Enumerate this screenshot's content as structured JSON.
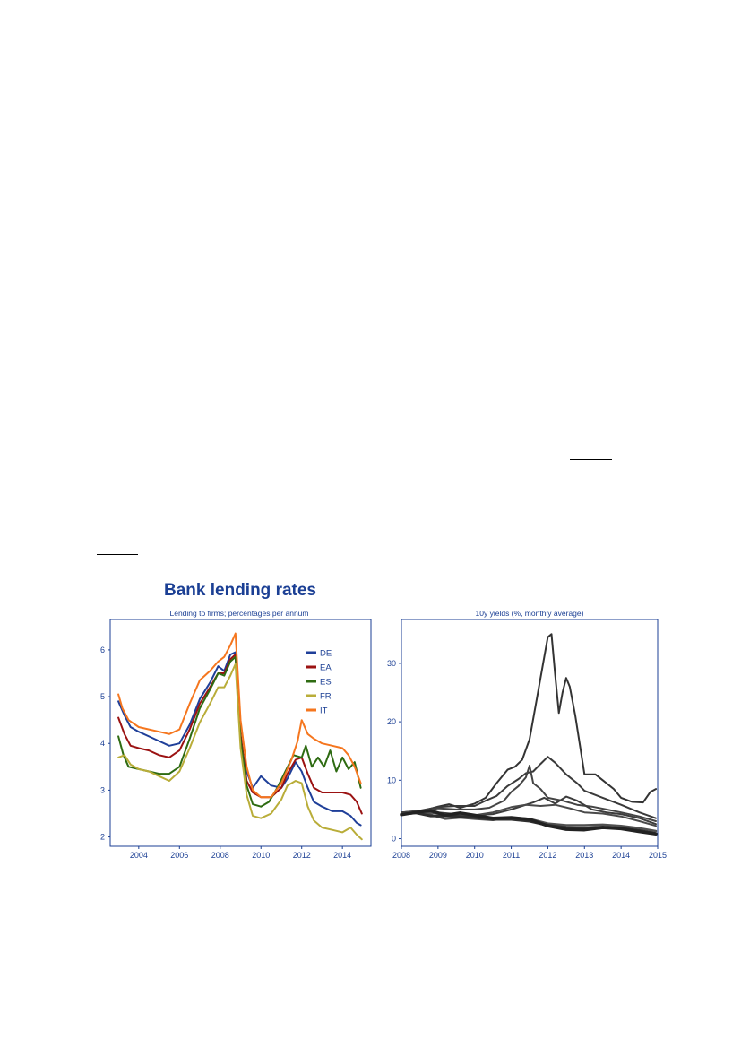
{
  "main_title": "Bank lending rates",
  "chart_data": [
    {
      "type": "line",
      "title": "Lending to firms; percentages per annum",
      "xlabel": "",
      "ylabel": "",
      "xlim": [
        2002.6,
        2015.4
      ],
      "ylim": [
        1.8,
        6.65
      ],
      "xticks": [
        2004,
        2006,
        2008,
        2010,
        2012,
        2014
      ],
      "yticks": [
        2,
        3,
        4,
        5,
        6
      ],
      "grid": false,
      "legend_position": "top-right",
      "series": [
        {
          "name": "DE",
          "color": "#1f3f99",
          "x": [
            2003.0,
            2003.3,
            2003.6,
            2004.0,
            2004.5,
            2005.0,
            2005.5,
            2006.0,
            2006.5,
            2007.0,
            2007.5,
            2007.9,
            2008.2,
            2008.5,
            2008.75,
            2009.0,
            2009.3,
            2009.6,
            2010.0,
            2010.5,
            2011.0,
            2011.3,
            2011.7,
            2012.0,
            2012.3,
            2012.6,
            2013.0,
            2013.5,
            2014.0,
            2014.4,
            2014.7,
            2014.9
          ],
          "y": [
            4.9,
            4.6,
            4.35,
            4.25,
            4.15,
            4.05,
            3.95,
            4.0,
            4.4,
            4.95,
            5.3,
            5.65,
            5.55,
            5.9,
            5.95,
            4.0,
            3.4,
            3.05,
            3.3,
            3.1,
            3.05,
            3.25,
            3.6,
            3.4,
            3.05,
            2.75,
            2.65,
            2.55,
            2.55,
            2.45,
            2.3,
            2.25
          ]
        },
        {
          "name": "EA",
          "color": "#9b1212",
          "x": [
            2003.0,
            2003.3,
            2003.6,
            2004.0,
            2004.5,
            2005.0,
            2005.5,
            2006.0,
            2006.5,
            2007.0,
            2007.5,
            2007.9,
            2008.2,
            2008.5,
            2008.75,
            2009.0,
            2009.3,
            2009.6,
            2010.0,
            2010.5,
            2011.0,
            2011.3,
            2011.7,
            2012.0,
            2012.3,
            2012.6,
            2013.0,
            2013.5,
            2014.0,
            2014.4,
            2014.7,
            2014.95
          ],
          "y": [
            4.55,
            4.2,
            3.95,
            3.9,
            3.85,
            3.75,
            3.7,
            3.85,
            4.3,
            4.85,
            5.2,
            5.5,
            5.5,
            5.8,
            5.9,
            4.2,
            3.2,
            2.95,
            2.85,
            2.85,
            3.05,
            3.35,
            3.65,
            3.7,
            3.35,
            3.05,
            2.95,
            2.95,
            2.95,
            2.9,
            2.75,
            2.5
          ]
        },
        {
          "name": "ES",
          "color": "#2e6b12",
          "x": [
            2003.0,
            2003.25,
            2003.5,
            2004.0,
            2004.5,
            2005.0,
            2005.5,
            2006.0,
            2006.5,
            2007.0,
            2007.5,
            2007.9,
            2008.2,
            2008.5,
            2008.75,
            2009.0,
            2009.3,
            2009.6,
            2010.0,
            2010.4,
            2010.8,
            2011.2,
            2011.6,
            2012.0,
            2012.2,
            2012.5,
            2012.8,
            2013.1,
            2013.4,
            2013.7,
            2014.0,
            2014.3,
            2014.6,
            2014.9
          ],
          "y": [
            4.15,
            3.75,
            3.5,
            3.45,
            3.4,
            3.35,
            3.35,
            3.5,
            4.1,
            4.75,
            5.15,
            5.5,
            5.45,
            5.75,
            5.85,
            4.1,
            3.1,
            2.7,
            2.65,
            2.75,
            3.05,
            3.4,
            3.75,
            3.7,
            3.95,
            3.5,
            3.7,
            3.5,
            3.85,
            3.4,
            3.7,
            3.45,
            3.6,
            3.05
          ]
        },
        {
          "name": "FR",
          "color": "#b9ad39",
          "x": [
            2003.0,
            2003.3,
            2003.6,
            2004.0,
            2004.5,
            2005.0,
            2005.5,
            2006.0,
            2006.5,
            2007.0,
            2007.5,
            2007.9,
            2008.2,
            2008.5,
            2008.75,
            2009.0,
            2009.3,
            2009.6,
            2010.0,
            2010.5,
            2011.0,
            2011.3,
            2011.7,
            2012.0,
            2012.3,
            2012.6,
            2013.0,
            2013.5,
            2014.0,
            2014.4,
            2014.7,
            2014.95
          ],
          "y": [
            3.7,
            3.75,
            3.55,
            3.45,
            3.4,
            3.3,
            3.2,
            3.4,
            3.9,
            4.45,
            4.85,
            5.2,
            5.2,
            5.45,
            5.7,
            3.9,
            2.9,
            2.45,
            2.4,
            2.5,
            2.8,
            3.1,
            3.2,
            3.15,
            2.65,
            2.35,
            2.2,
            2.15,
            2.1,
            2.2,
            2.05,
            1.95
          ]
        },
        {
          "name": "IT",
          "color": "#f5761e",
          "x": [
            2003.0,
            2003.2,
            2003.5,
            2004.0,
            2004.5,
            2005.0,
            2005.5,
            2006.0,
            2006.5,
            2007.0,
            2007.5,
            2007.9,
            2008.2,
            2008.5,
            2008.75,
            2009.0,
            2009.3,
            2009.6,
            2010.0,
            2010.5,
            2011.0,
            2011.5,
            2011.8,
            2012.0,
            2012.3,
            2012.6,
            2013.0,
            2013.5,
            2014.0,
            2014.3,
            2014.6,
            2014.9
          ],
          "y": [
            5.05,
            4.75,
            4.5,
            4.35,
            4.3,
            4.25,
            4.2,
            4.3,
            4.85,
            5.35,
            5.55,
            5.75,
            5.85,
            6.1,
            6.35,
            4.5,
            3.5,
            3.0,
            2.85,
            2.85,
            3.15,
            3.65,
            4.05,
            4.5,
            4.2,
            4.1,
            4.0,
            3.95,
            3.9,
            3.75,
            3.5,
            3.15
          ]
        }
      ]
    },
    {
      "type": "line",
      "title": "10y yields (%, monthly average)",
      "xlabel": "",
      "ylabel": "",
      "xlim": [
        2008,
        2015
      ],
      "ylim": [
        -1.3,
        37.5
      ],
      "xticks": [
        2008,
        2009,
        2010,
        2011,
        2012,
        2013,
        2014,
        2015
      ],
      "yticks": [
        0,
        10,
        20,
        30
      ],
      "grid": false,
      "series": [
        {
          "color": "#333333",
          "x": [
            2008.0,
            2008.3,
            2008.6,
            2009.0,
            2009.3,
            2009.6,
            2010.0,
            2010.3,
            2010.6,
            2010.9,
            2011.1,
            2011.3,
            2011.5,
            2011.7,
            2011.9,
            2012.0,
            2012.1,
            2012.2,
            2012.3,
            2012.4,
            2012.5,
            2012.6,
            2012.75,
            2013.0,
            2013.3,
            2013.5,
            2013.8,
            2014.0,
            2014.3,
            2014.6,
            2014.8,
            2014.95
          ],
          "y": [
            4.5,
            4.6,
            4.8,
            5.5,
            5.9,
            5.3,
            6.0,
            7.0,
            9.5,
            11.8,
            12.3,
            13.5,
            17.0,
            24.0,
            31.0,
            34.5,
            35.0,
            28.0,
            21.5,
            25.0,
            27.5,
            26.0,
            21.0,
            11.0,
            11.0,
            10.0,
            8.5,
            7.0,
            6.3,
            6.2,
            8.0,
            8.5
          ]
        },
        {
          "color": "#3a3a3a",
          "x": [
            2008.0,
            2008.5,
            2009.0,
            2009.5,
            2010.0,
            2010.3,
            2010.6,
            2010.9,
            2011.2,
            2011.4,
            2011.6,
            2011.8,
            2012.0,
            2012.2,
            2012.5,
            2012.8,
            2013.0,
            2013.5,
            2014.0,
            2014.5,
            2014.95
          ],
          "y": [
            4.5,
            4.8,
            5.4,
            5.6,
            5.6,
            6.5,
            7.3,
            9.0,
            10.2,
            11.2,
            11.5,
            12.8,
            14.0,
            13.0,
            11.0,
            9.5,
            8.2,
            7.0,
            5.8,
            4.5,
            3.5
          ]
        },
        {
          "color": "#444444",
          "x": [
            2008.0,
            2008.5,
            2009.0,
            2009.5,
            2010.0,
            2010.4,
            2010.8,
            2011.0,
            2011.2,
            2011.4,
            2011.5,
            2011.6,
            2011.8,
            2012.0,
            2012.4,
            2012.8,
            2013.2,
            2013.6,
            2014.0,
            2014.5,
            2014.95
          ],
          "y": [
            4.5,
            4.7,
            5.2,
            5.0,
            5.0,
            5.3,
            6.5,
            8.0,
            9.0,
            10.5,
            12.5,
            9.5,
            8.5,
            7.0,
            6.5,
            5.8,
            5.5,
            5.0,
            4.5,
            3.8,
            3.0
          ]
        },
        {
          "color": "#3c3c3c",
          "x": [
            2008.0,
            2008.5,
            2009.0,
            2009.5,
            2010.0,
            2010.5,
            2011.0,
            2011.3,
            2011.6,
            2011.9,
            2012.2,
            2012.5,
            2012.8,
            2013.2,
            2013.6,
            2014.0,
            2014.5,
            2014.95
          ],
          "y": [
            4.5,
            4.7,
            4.5,
            4.2,
            4.0,
            4.2,
            5.0,
            5.6,
            6.2,
            7.0,
            6.0,
            7.2,
            6.5,
            5.0,
            4.5,
            4.2,
            3.5,
            2.5
          ]
        },
        {
          "color": "#4a4a4a",
          "x": [
            2008.0,
            2008.5,
            2009.0,
            2009.5,
            2010.0,
            2010.5,
            2011.0,
            2011.4,
            2011.8,
            2012.2,
            2012.6,
            2013.0,
            2013.5,
            2014.0,
            2014.5,
            2014.95
          ],
          "y": [
            4.4,
            4.6,
            4.3,
            4.0,
            4.0,
            4.5,
            5.4,
            5.8,
            5.6,
            5.8,
            5.2,
            4.5,
            4.3,
            3.8,
            3.0,
            2.2
          ]
        },
        {
          "color": "#505050",
          "x": [
            2008.0,
            2008.4,
            2008.8,
            2009.2,
            2009.6,
            2010.0,
            2010.5,
            2011.0,
            2011.5,
            2012.0,
            2012.5,
            2013.0,
            2013.5,
            2014.0,
            2014.5,
            2014.95
          ],
          "y": [
            4.3,
            4.6,
            4.1,
            3.4,
            3.6,
            3.4,
            3.2,
            3.6,
            3.4,
            2.6,
            2.3,
            2.3,
            2.4,
            2.2,
            1.8,
            1.3
          ]
        },
        {
          "color": "#2e2e2e",
          "x": [
            2008.0,
            2008.4,
            2008.8,
            2009.2,
            2009.6,
            2010.0,
            2010.5,
            2011.0,
            2011.5,
            2012.0,
            2012.5,
            2013.0,
            2013.5,
            2014.0,
            2014.5,
            2014.95
          ],
          "y": [
            4.2,
            4.4,
            3.9,
            3.9,
            3.8,
            3.6,
            3.3,
            3.3,
            3.0,
            2.3,
            1.9,
            1.8,
            2.0,
            1.8,
            1.4,
            0.9
          ]
        },
        {
          "color": "#222222",
          "x": [
            2008.0,
            2008.4,
            2008.8,
            2009.2,
            2009.6,
            2010.0,
            2010.5,
            2011.0,
            2011.5,
            2012.0,
            2012.5,
            2013.0,
            2013.5,
            2014.0,
            2014.5,
            2014.95
          ],
          "y": [
            4.1,
            4.5,
            4.8,
            4.0,
            4.4,
            4.0,
            3.5,
            3.6,
            3.3,
            2.2,
            1.6,
            1.5,
            1.9,
            1.7,
            1.2,
            0.8
          ]
        }
      ]
    }
  ]
}
